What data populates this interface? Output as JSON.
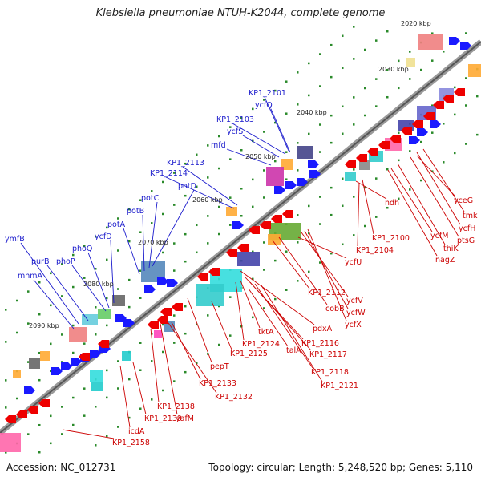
{
  "title": "Klebsiella pneumoniae NTUH-K2044, complete genome",
  "footer": {
    "accession": "Accession: NC_012731",
    "topology": "Topology: circular; Length: 5,248,520 bp; Genes: 5,110"
  },
  "ticks": [
    "2020 kbp",
    "2030 kbp",
    "2040 kbp",
    "2050 kbp",
    "2060 kbp",
    "2070 kbp",
    "2080 kbp",
    "2090 kbp"
  ],
  "upper_labels": [
    "KP1_2101",
    "ycfQ",
    "KP1_2103",
    "ycfS",
    "mfd",
    "KP1_2113",
    "KP1_2114",
    "potD",
    "potC",
    "potB",
    "potA",
    "ycfD",
    "phoQ",
    "phoP",
    "purB",
    "ymfB",
    "mnmA"
  ],
  "lower_labels": [
    "ycfU",
    "ndh",
    "KP1_2100",
    "KP1_2104",
    "ycfM",
    "thiK",
    "nagZ",
    "ptsG",
    "ycfH",
    "tmk",
    "yceG",
    "KP1_2112",
    "cobB",
    "ycfV",
    "ycfW",
    "ycfX",
    "pdxA",
    "KP1_2116",
    "KP1_2117",
    "KP1_2118",
    "KP1_2121",
    "tktA",
    "KP1_2124",
    "talA",
    "KP1_2125",
    "pepT",
    "KP1_2133",
    "KP1_2132",
    "yafM",
    "KP1_2138",
    "KP1_2139",
    "icdA",
    "KP1_2158"
  ],
  "colors": {
    "forward_arrow": "#1a1aff",
    "reverse_arrow": "#ee0000",
    "backbone": "#777777",
    "tick_dot": "#2a8a2a",
    "label_blue": "#1a1acc",
    "label_red": "#cc0000"
  }
}
